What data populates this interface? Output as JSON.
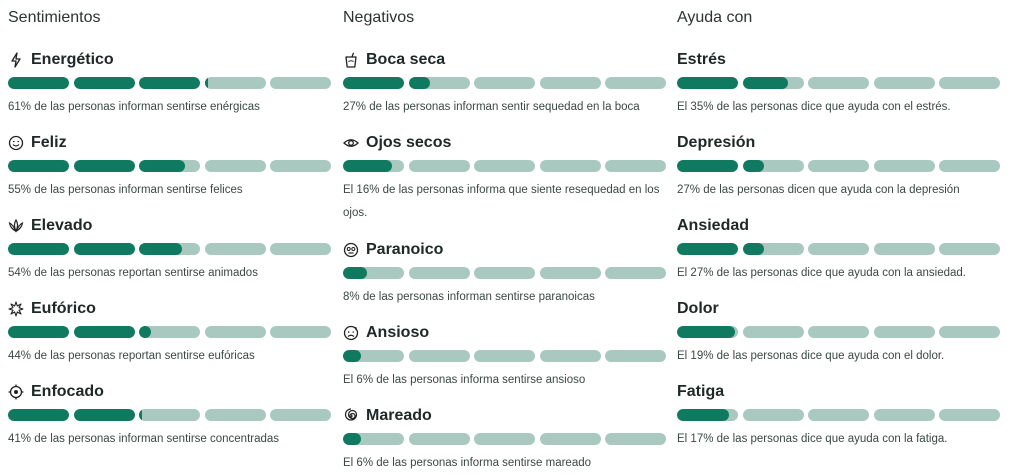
{
  "columns": [
    {
      "title": "Sentimientos",
      "items": [
        {
          "title": "Energético",
          "icon": "lightning-icon",
          "percent": 61,
          "description": "61% de las personas informan sentirse enérgicas"
        },
        {
          "title": "Feliz",
          "icon": "smile-icon",
          "percent": 55,
          "description": "55% de las personas informan sentirse felices"
        },
        {
          "title": "Elevado",
          "icon": "cannabis-leaf-icon",
          "percent": 54,
          "description": "54% de las personas reportan sentirse animados"
        },
        {
          "title": "Eufórico",
          "icon": "sparkle-burst-icon",
          "percent": 44,
          "description": "44% de las personas reportan sentirse eufóricas"
        },
        {
          "title": "Enfocado",
          "icon": "target-icon",
          "percent": 41,
          "description": "41% de las personas informan sentirse concentradas"
        }
      ]
    },
    {
      "title": "Negativos",
      "items": [
        {
          "title": "Boca seca",
          "icon": "cup-icon",
          "percent": 27,
          "description": "27% de las personas informan sentir sequedad en la boca"
        },
        {
          "title": "Ojos secos",
          "icon": "eye-icon",
          "percent": 16,
          "description": "El 16% de las personas informa que siente resequedad en los ojos."
        },
        {
          "title": "Paranoico",
          "icon": "paranoid-face-icon",
          "percent": 8,
          "description": "8% de las personas informan sentirse paranoicas"
        },
        {
          "title": "Ansioso",
          "icon": "anxious-face-icon",
          "percent": 6,
          "description": "El 6% de las personas informa sentirse ansioso"
        },
        {
          "title": "Mareado",
          "icon": "spiral-icon",
          "percent": 6,
          "description": "El 6% de las personas informa sentirse mareado"
        }
      ]
    },
    {
      "title": "Ayuda con",
      "items": [
        {
          "title": "Estrés",
          "icon": "",
          "percent": 35,
          "description": "El 35% de las personas dice que ayuda con el estrés."
        },
        {
          "title": "Depresión",
          "icon": "",
          "percent": 27,
          "description": "27% de las personas dicen que ayuda con la depresión"
        },
        {
          "title": "Ansiedad",
          "icon": "",
          "percent": 27,
          "description": "El 27% de las personas dice que ayuda con la ansiedad."
        },
        {
          "title": "Dolor",
          "icon": "",
          "percent": 19,
          "description": "El 19% de las personas dice que ayuda con el dolor."
        },
        {
          "title": "Fatiga",
          "icon": "",
          "percent": 17,
          "description": "El 17% de las personas dice que ayuda con la fatiga."
        }
      ]
    }
  ],
  "colors": {
    "bar_fill": "#0f7a5f",
    "bar_track": "#a9c9c0"
  }
}
